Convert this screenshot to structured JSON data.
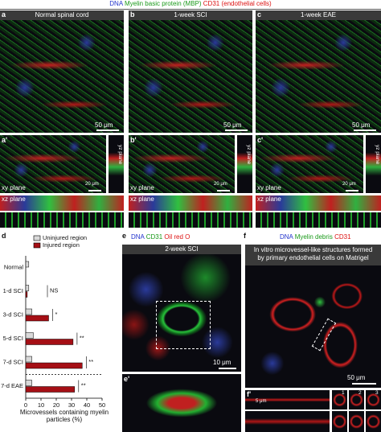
{
  "top_legend": [
    "DNA",
    "Myelin basic protein (MBP)",
    "CD31 (endothelial cells)"
  ],
  "panels": {
    "a": {
      "letter": "a",
      "title": "Normal spinal cord",
      "scale": "50 μm"
    },
    "b": {
      "letter": "b",
      "title": "1-week SCI",
      "scale": "50 μm"
    },
    "c": {
      "letter": "c",
      "title": "1-week EAE",
      "scale": "50 μm"
    }
  },
  "orthogonal": {
    "letters": [
      "a'",
      "b'",
      "c'"
    ],
    "xy": "xy plane",
    "yz": "yz plane",
    "xz": "xz plane",
    "scale": "20 μm"
  },
  "panel_d": {
    "letter": "d"
  },
  "chart_data": {
    "type": "hbar",
    "categories": [
      "Normal",
      "1-d SCI",
      "3-d SCI",
      "5-d SCI",
      "7-d SCI",
      "7-d EAE"
    ],
    "series": [
      {
        "name": "Uninjured region",
        "color": "#d9d9d9",
        "values": [
          2,
          2,
          4,
          5,
          4,
          4
        ]
      },
      {
        "name": "Injured region",
        "color": "#a50f15",
        "values": [
          null,
          1,
          15,
          31,
          37,
          32
        ]
      }
    ],
    "annotations": [
      null,
      "NS",
      "*",
      "**",
      "**",
      "**"
    ],
    "x_label": "Microvessels containing myelin particles (%)",
    "xlim": [
      0,
      50
    ],
    "xticks": [
      0,
      10,
      20,
      30,
      40,
      50
    ]
  },
  "panel_e": {
    "letter": "e",
    "legend": [
      "DNA",
      "CD31",
      "Oil red O"
    ],
    "title": "2-week SCI",
    "scale": "10 μm",
    "sub_letter": "e'"
  },
  "panel_f": {
    "letter": "f",
    "legend": [
      "DNA",
      "Myelin debris",
      "CD31"
    ],
    "title": "In vitro microvessel-like structures formed by primary endothelial cells on Matrigel",
    "scale": "50 μm",
    "sub_letter": "f'",
    "sub_scale": "5 μm",
    "insets": [
      "1",
      "2",
      "3"
    ]
  }
}
